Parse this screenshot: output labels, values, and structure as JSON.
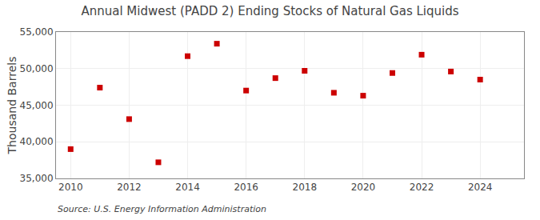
{
  "chart_data": {
    "type": "scatter",
    "title": "Annual Midwest (PADD 2) Ending Stocks of Natural Gas Liquids",
    "ylabel": "Thousand Barrels",
    "annotations": [
      "Source: U.S. Energy Information Administration"
    ],
    "x": [
      2010,
      2011,
      2012,
      2013,
      2014,
      2015,
      2016,
      2017,
      2018,
      2019,
      2020,
      2021,
      2022,
      2023,
      2024
    ],
    "values": [
      39000,
      47400,
      43100,
      37200,
      51700,
      53400,
      47000,
      48700,
      49700,
      46700,
      46300,
      49400,
      51900,
      49600,
      48500
    ],
    "color": "#cc0000",
    "marker": "square",
    "xlim": [
      2009.5,
      2025.5
    ],
    "xticks": [
      2010,
      2012,
      2014,
      2016,
      2018,
      2020,
      2022,
      2024
    ],
    "ylim": [
      35000,
      55000
    ],
    "yticks": [
      {
        "value": 35000,
        "label": "35,000"
      },
      {
        "value": 40000,
        "label": "40,000"
      },
      {
        "value": 45000,
        "label": "45,000"
      },
      {
        "value": 50000,
        "label": "50,000"
      },
      {
        "value": 55000,
        "label": "55,000"
      }
    ],
    "grid": true
  }
}
